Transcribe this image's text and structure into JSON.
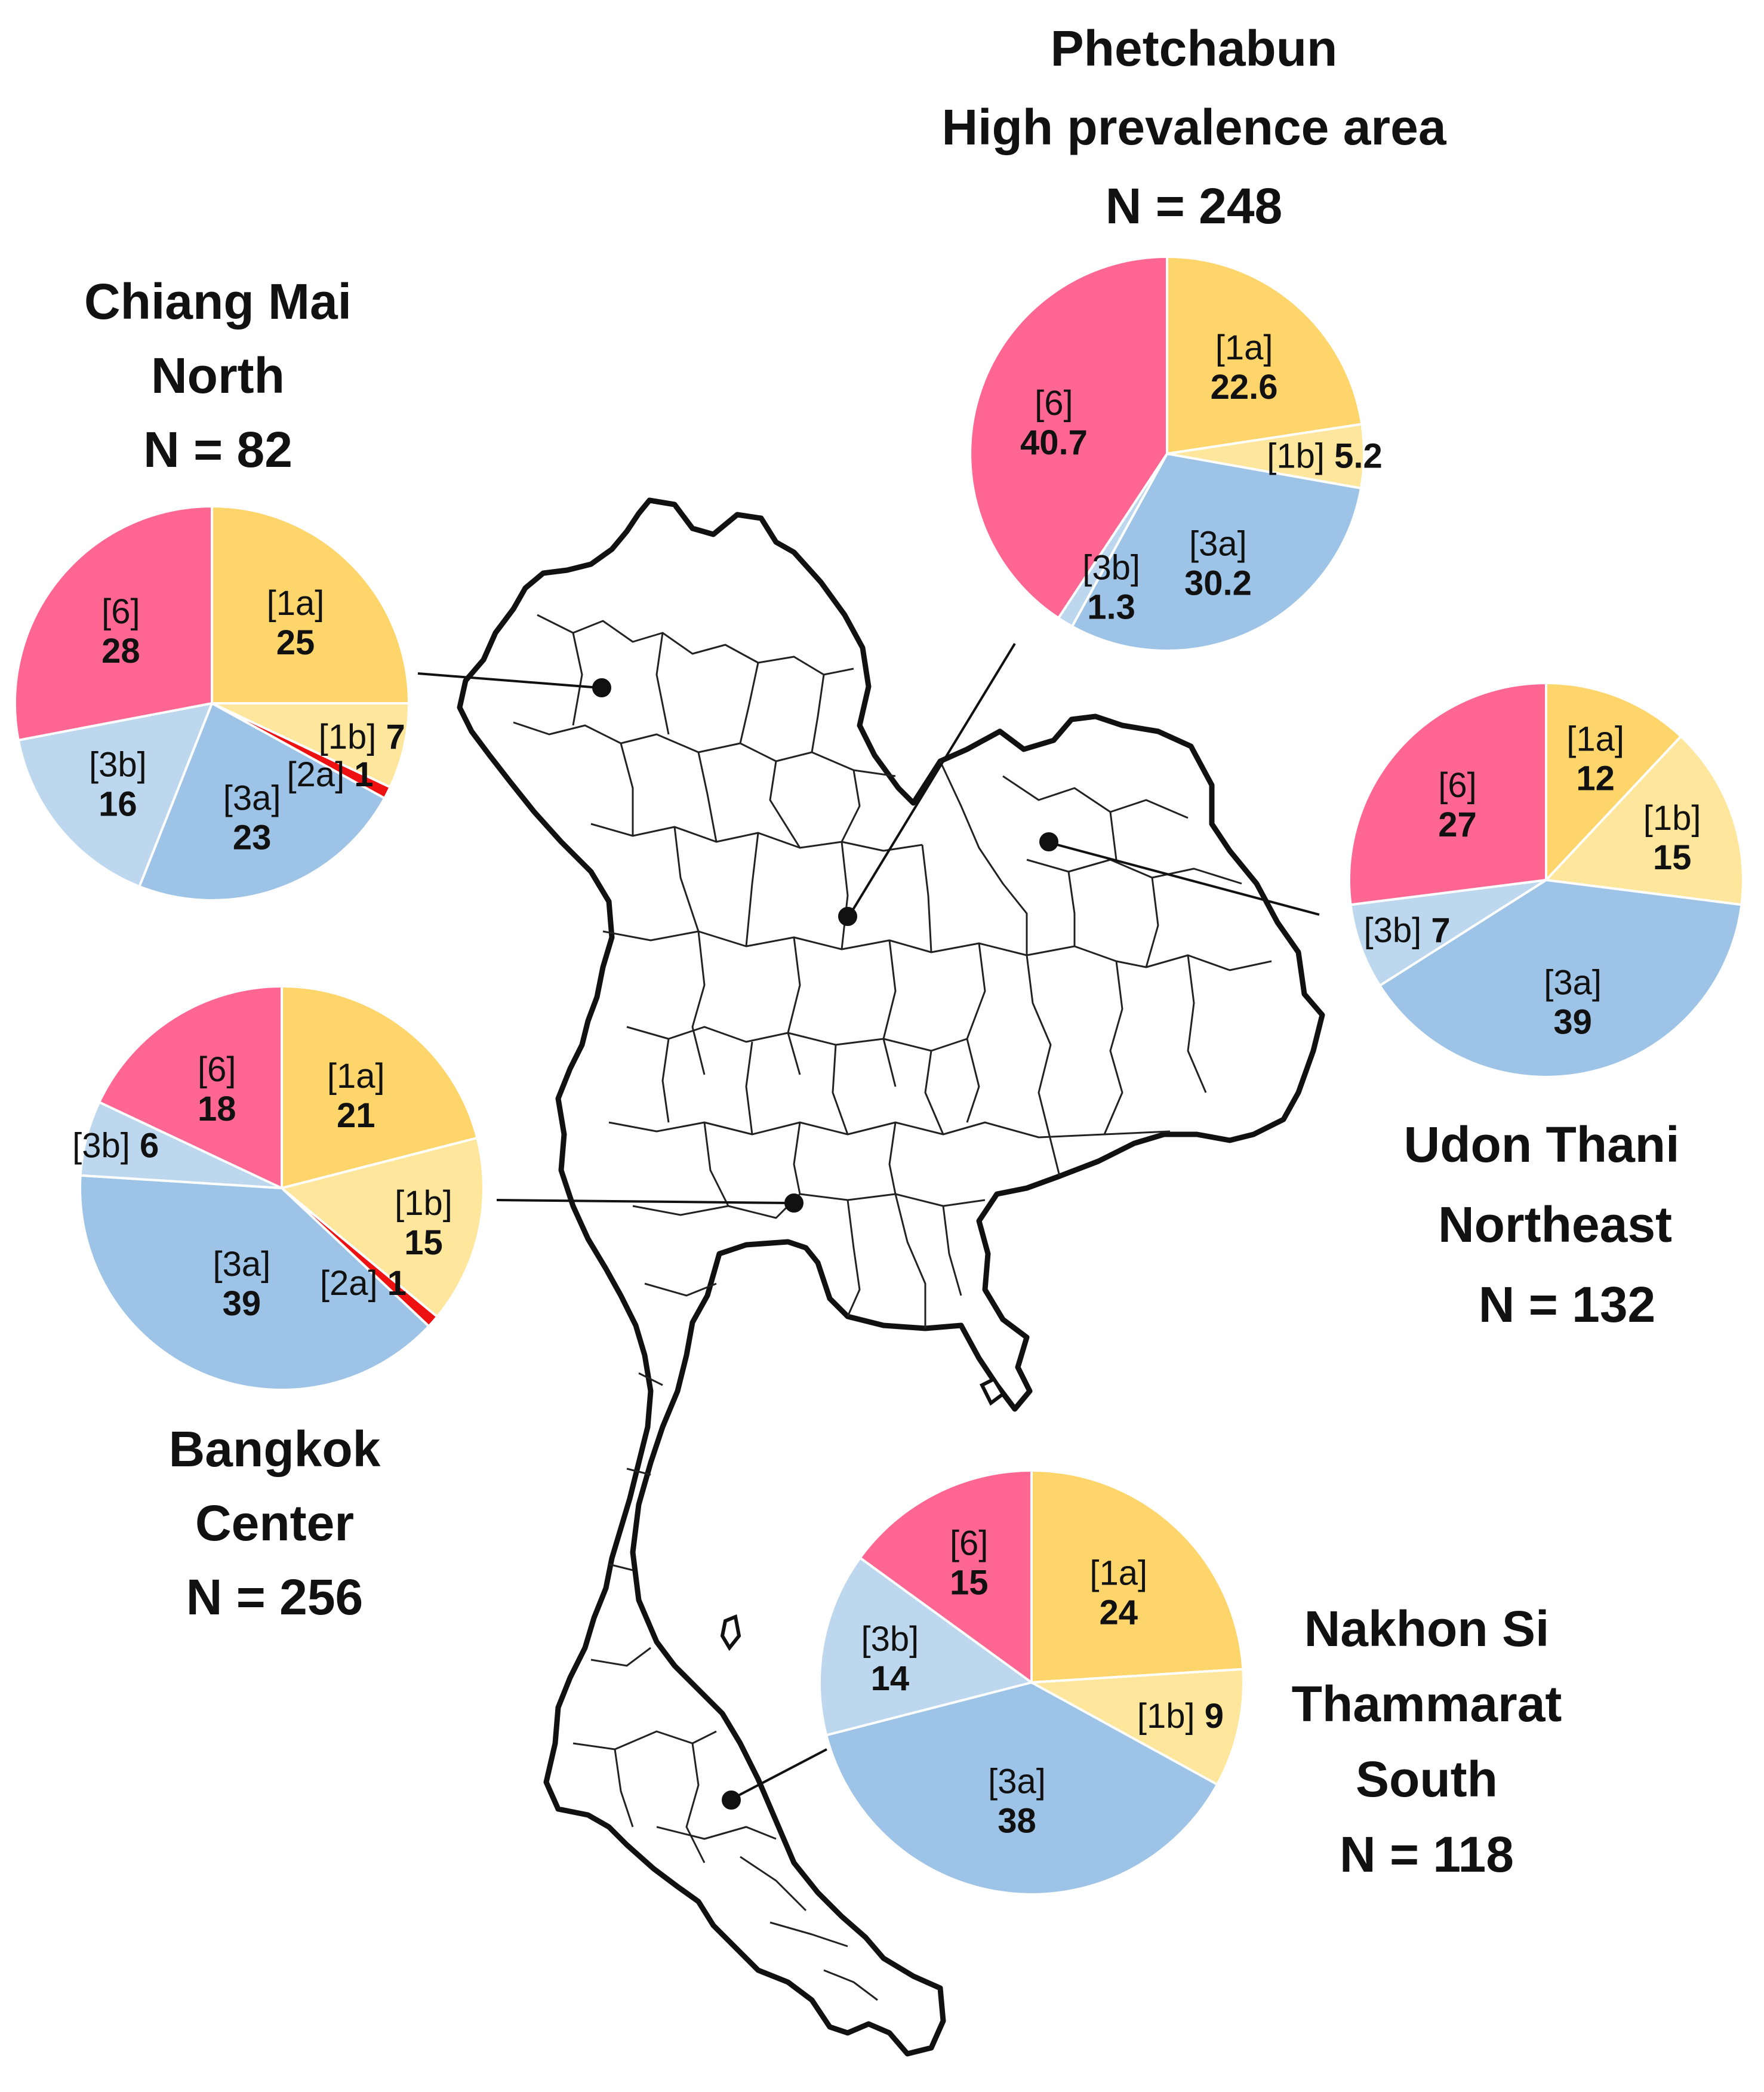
{
  "figure": {
    "colors": {
      "1a": "#FDD56A",
      "1b": "#FEE79C",
      "2a": "#EE1111",
      "3a": "#9DC3E6",
      "3b": "#BDD7EE",
      "6": "#FF6692",
      "map_stroke": "#111111"
    },
    "map": {
      "name": "thailand-province-map"
    }
  },
  "chart_data": [
    {
      "type": "pie",
      "region": "Chiang Mai",
      "subtitle": "North",
      "n_label": "N = 82",
      "slices": [
        {
          "label": "[1a]",
          "value": 25,
          "value_label": "25",
          "key": "1a"
        },
        {
          "label": "[1b]",
          "value": 7,
          "value_label": "7",
          "key": "1b"
        },
        {
          "label": "[2a]",
          "value": 1,
          "value_label": "1",
          "key": "2a"
        },
        {
          "label": "[3a]",
          "value": 23,
          "value_label": "23",
          "key": "3a"
        },
        {
          "label": "[3b]",
          "value": 16,
          "value_label": "16",
          "key": "3b"
        },
        {
          "label": "[6]",
          "value": 28,
          "value_label": "28",
          "key": "6"
        }
      ]
    },
    {
      "type": "pie",
      "region": "Phetchabun",
      "subtitle": "High prevalence area",
      "n_label": "N = 248",
      "slices": [
        {
          "label": "[1a]",
          "value": 22.6,
          "value_label": "22.6",
          "key": "1a"
        },
        {
          "label": "[1b]",
          "value": 5.2,
          "value_label": "5.2",
          "key": "1b"
        },
        {
          "label": "[3a]",
          "value": 30.2,
          "value_label": "30.2",
          "key": "3a"
        },
        {
          "label": "[3b]",
          "value": 1.3,
          "value_label": "1.3",
          "key": "3b"
        },
        {
          "label": "[6]",
          "value": 40.7,
          "value_label": "40.7",
          "key": "6"
        }
      ]
    },
    {
      "type": "pie",
      "region": "Udon Thani",
      "subtitle": "Northeast",
      "n_label": "N = 132",
      "slices": [
        {
          "label": "[1a]",
          "value": 12,
          "value_label": "12",
          "key": "1a"
        },
        {
          "label": "[1b]",
          "value": 15,
          "value_label": "15",
          "key": "1b"
        },
        {
          "label": "[3a]",
          "value": 39,
          "value_label": "39",
          "key": "3a"
        },
        {
          "label": "[3b]",
          "value": 7,
          "value_label": "7",
          "key": "3b"
        },
        {
          "label": "[6]",
          "value": 27,
          "value_label": "27",
          "key": "6"
        }
      ]
    },
    {
      "type": "pie",
      "region": "Bangkok",
      "subtitle": "Center",
      "n_label": "N = 256",
      "slices": [
        {
          "label": "[1a]",
          "value": 21,
          "value_label": "21",
          "key": "1a"
        },
        {
          "label": "[1b]",
          "value": 15,
          "value_label": "15",
          "key": "1b"
        },
        {
          "label": "[2a]",
          "value": 1,
          "value_label": "1",
          "key": "2a"
        },
        {
          "label": "[3a]",
          "value": 39,
          "value_label": "39",
          "key": "3a"
        },
        {
          "label": "[3b]",
          "value": 6,
          "value_label": "6",
          "key": "3b"
        },
        {
          "label": "[6]",
          "value": 18,
          "value_label": "18",
          "key": "6"
        }
      ]
    },
    {
      "type": "pie",
      "region": "Nakhon Si",
      "region_line2": "Thammarat",
      "subtitle": "South",
      "n_label": "N = 118",
      "slices": [
        {
          "label": "[1a]",
          "value": 24,
          "value_label": "24",
          "key": "1a"
        },
        {
          "label": "[1b]",
          "value": 9,
          "value_label": "9",
          "key": "1b"
        },
        {
          "label": "[3a]",
          "value": 38,
          "value_label": "38",
          "key": "3a"
        },
        {
          "label": "[3b]",
          "value": 14,
          "value_label": "14",
          "key": "3b"
        },
        {
          "label": "[6]",
          "value": 15,
          "value_label": "15",
          "key": "6"
        }
      ]
    }
  ]
}
